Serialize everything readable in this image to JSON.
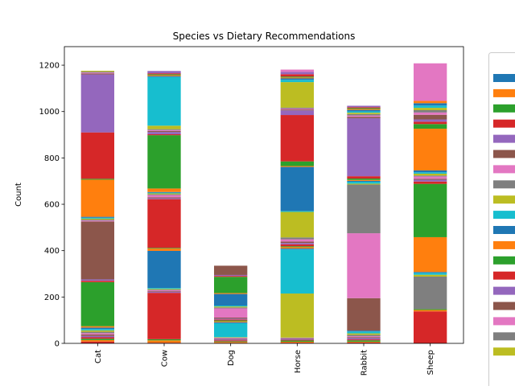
{
  "chart_data": {
    "type": "bar",
    "stacked": true,
    "title": "Species vs Dietary Recommendations",
    "xlabel": "",
    "ylabel": "Count",
    "categories": [
      "Cat",
      "Cow",
      "Dog",
      "Horse",
      "Rabbit",
      "Sheep"
    ],
    "ylim": [
      0,
      1280
    ],
    "yticks": [
      0,
      200,
      400,
      600,
      800,
      1000,
      1200
    ],
    "grid": false,
    "legend": "right (clipped)",
    "series": [
      {
        "values": [
          8,
          3,
          2,
          3,
          4,
          138
        ],
        "color": "#d62728"
      },
      {
        "values": [
          6,
          10,
          4,
          4,
          3,
          6
        ],
        "color": "#ff7f0e"
      },
      {
        "values": [
          6,
          5,
          3,
          5,
          6,
          4
        ],
        "color": "#2ca02c"
      },
      {
        "values": [
          6,
          200,
          4,
          3,
          4,
          0
        ],
        "color": "#d62728"
      },
      {
        "values": [
          6,
          4,
          3,
          4,
          6,
          0
        ],
        "color": "#9467bd"
      },
      {
        "values": [
          6,
          3,
          3,
          2,
          4,
          0
        ],
        "color": "#8c564b"
      },
      {
        "values": [
          6,
          4,
          4,
          2,
          4,
          0
        ],
        "color": "#e377c2"
      },
      {
        "values": [
          6,
          3,
          2,
          2,
          6,
          140
        ],
        "color": "#7f7f7f"
      },
      {
        "values": [
          6,
          3,
          2,
          190,
          6,
          8
        ],
        "color": "#bcbd22"
      },
      {
        "values": [
          6,
          4,
          60,
          190,
          8,
          8
        ],
        "color": "#17becf"
      },
      {
        "values": [
          6,
          160,
          4,
          4,
          4,
          4
        ],
        "color": "#1f77b4"
      },
      {
        "values": [
          6,
          10,
          4,
          6,
          0,
          150
        ],
        "color": "#ff7f0e"
      },
      {
        "values": [
          190,
          3,
          4,
          4,
          0,
          230
        ],
        "color": "#2ca02c"
      },
      {
        "values": [
          6,
          210,
          4,
          8,
          0,
          10
        ],
        "color": "#d62728"
      },
      {
        "values": [
          6,
          4,
          4,
          6,
          0,
          8
        ],
        "color": "#9467bd"
      },
      {
        "values": [
          250,
          4,
          4,
          6,
          140,
          4
        ],
        "color": "#8c564b"
      },
      {
        "values": [
          4,
          10,
          40,
          10,
          280,
          10
        ],
        "color": "#e377c2"
      },
      {
        "values": [
          4,
          3,
          4,
          8,
          210,
          4
        ],
        "color": "#7f7f7f"
      },
      {
        "values": [
          4,
          4,
          4,
          110,
          4,
          8
        ],
        "color": "#bcbd22"
      },
      {
        "values": [
          4,
          3,
          4,
          4,
          8,
          6
        ],
        "color": "#17becf"
      },
      {
        "values": [
          4,
          3,
          50,
          190,
          4,
          8
        ],
        "color": "#1f77b4"
      },
      {
        "values": [
          160,
          15,
          4,
          4,
          4,
          180
        ],
        "color": "#ff7f0e"
      },
      {
        "values": [
          4,
          230,
          70,
          20,
          6,
          20
        ],
        "color": "#2ca02c"
      },
      {
        "values": [
          200,
          4,
          4,
          200,
          10,
          10
        ],
        "color": "#d62728"
      },
      {
        "values": [
          250,
          10,
          4,
          20,
          250,
          10
        ],
        "color": "#9467bd"
      },
      {
        "values": [
          4,
          4,
          40,
          4,
          6,
          20
        ],
        "color": "#8c564b"
      },
      {
        "values": [
          4,
          4,
          0,
          4,
          6,
          10
        ],
        "color": "#e377c2"
      },
      {
        "values": [
          4,
          4,
          0,
          4,
          6,
          10
        ],
        "color": "#7f7f7f"
      },
      {
        "values": [
          4,
          15,
          0,
          110,
          6,
          10
        ],
        "color": "#bcbd22"
      },
      {
        "values": [
          0,
          210,
          0,
          10,
          6,
          10
        ],
        "color": "#17becf"
      },
      {
        "values": [
          0,
          4,
          0,
          6,
          6,
          10
        ],
        "color": "#1f77b4"
      },
      {
        "values": [
          0,
          4,
          0,
          4,
          4,
          10
        ],
        "color": "#ff7f0e"
      },
      {
        "values": [
          0,
          4,
          0,
          4,
          4,
          0
        ],
        "color": "#2ca02c"
      },
      {
        "values": [
          0,
          4,
          0,
          10,
          4,
          0
        ],
        "color": "#d62728"
      },
      {
        "values": [
          0,
          10,
          0,
          10,
          6,
          0
        ],
        "color": "#9467bd"
      },
      {
        "values": [
          0,
          0,
          0,
          0,
          0,
          0
        ],
        "color": "#8c564b"
      },
      {
        "values": [
          0,
          0,
          0,
          10,
          0,
          162
        ],
        "color": "#e377c2"
      }
    ],
    "legend_swatch_colors": [
      "#1f77b4",
      "#ff7f0e",
      "#2ca02c",
      "#d62728",
      "#9467bd",
      "#8c564b",
      "#e377c2",
      "#7f7f7f",
      "#bcbd22",
      "#17becf",
      "#1f77b4",
      "#ff7f0e",
      "#2ca02c",
      "#d62728",
      "#9467bd",
      "#8c564b",
      "#e377c2",
      "#7f7f7f",
      "#bcbd22"
    ]
  }
}
